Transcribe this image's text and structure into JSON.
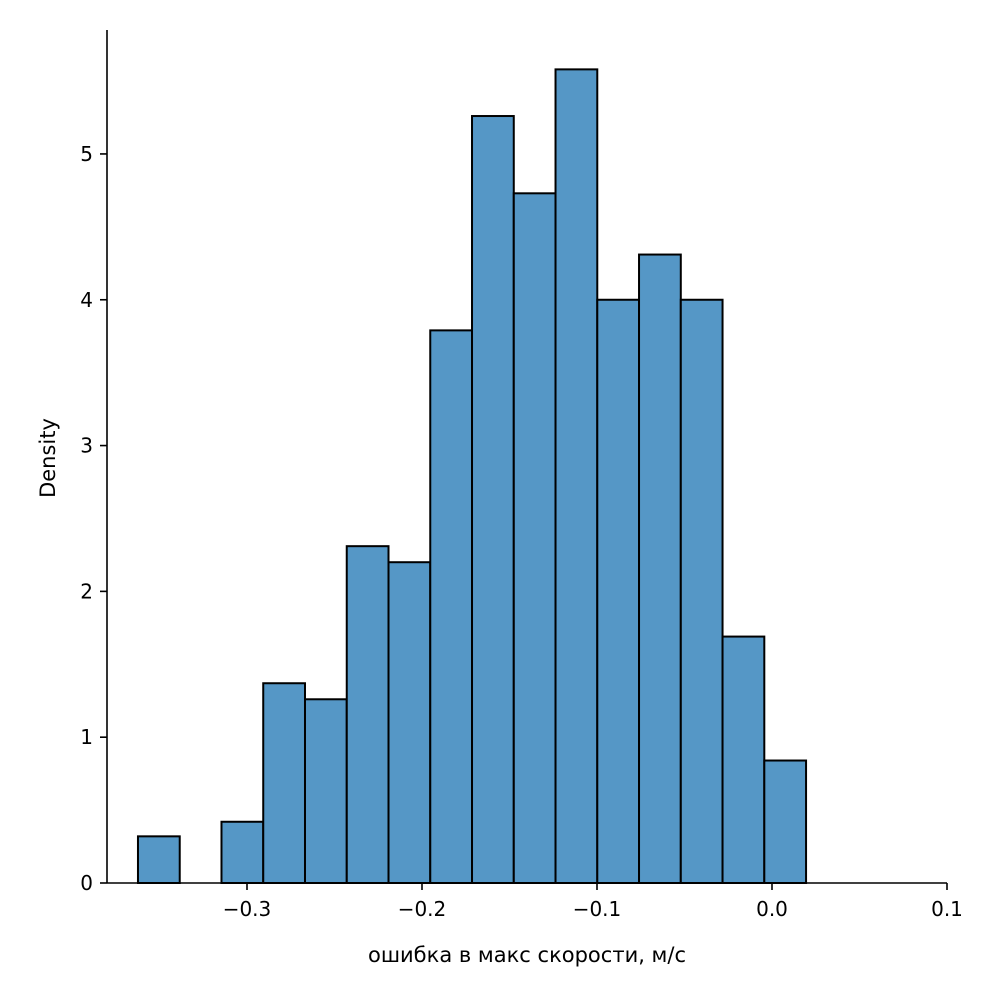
{
  "chart_data": {
    "type": "bar",
    "subtype": "histogram",
    "title": "",
    "xlabel": "ошибка в макс скорости, м/с",
    "ylabel": "Density",
    "xlim": [
      -0.38,
      0.1
    ],
    "ylim": [
      0,
      5.85
    ],
    "grid": false,
    "bar_color": "#5597c6",
    "edge_color": "#000000",
    "bin_start": -0.3623,
    "bin_width": 0.02386,
    "values": [
      0.32,
      0,
      0.42,
      1.37,
      1.26,
      2.31,
      2.2,
      3.79,
      5.26,
      4.73,
      5.58,
      4.0,
      4.31,
      4.0,
      1.69,
      0.84
    ],
    "xticks": [
      -0.3,
      -0.2,
      -0.1,
      0.0,
      0.1
    ],
    "xtick_labels": [
      "−0.3",
      "−0.2",
      "−0.1",
      "0.0",
      "0.1"
    ],
    "yticks": [
      0,
      1,
      2,
      3,
      4,
      5
    ],
    "ytick_labels": [
      "0",
      "1",
      "2",
      "3",
      "4",
      "5"
    ]
  }
}
